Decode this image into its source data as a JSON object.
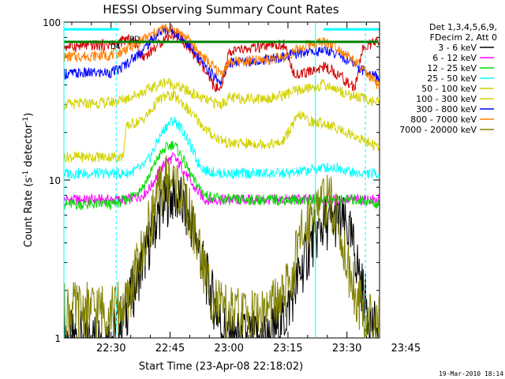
{
  "chart_data": {
    "type": "line",
    "title": "HESSI Observing Summary Count Rates",
    "xlabel": "Start Time (23-Apr-08 22:18:02)",
    "ylabel": "Count Rate (s",
    "ylabel_sup": "-1",
    "ylabel_suffix": " detector",
    "ylabel_end": ")",
    "y_scale": "log",
    "ylim": [
      1,
      100
    ],
    "y_ticks": [
      {
        "value": 1,
        "label": "1"
      },
      {
        "value": 10,
        "label": "10"
      },
      {
        "value": 100,
        "label": "100"
      }
    ],
    "x_range_min": [
      0,
      80.3
    ],
    "x_ticks": [
      {
        "value": 12,
        "label": "22:30"
      },
      {
        "value": 27,
        "label": "22:45"
      },
      {
        "value": 42,
        "label": "23:00"
      },
      {
        "value": 57,
        "label": "23:15"
      },
      {
        "value": 72,
        "label": "23:30"
      },
      {
        "value": 87,
        "label": "23:45"
      }
    ],
    "legend_header": [
      "Det 1,3,4,5,6,9,",
      "FDecim 2, Att 0"
    ],
    "legend_position": "top-right outside",
    "annotations": [
      "RD",
      "D4"
    ],
    "series": [
      {
        "name": "3 - 6 keV",
        "color": "#000000",
        "x": [
          0,
          12,
          16,
          20,
          24,
          26,
          28,
          30,
          33,
          36,
          40,
          43,
          46,
          48,
          52,
          56,
          60,
          63,
          66,
          70,
          72,
          74,
          76,
          78,
          80
        ],
        "y": [
          1,
          1,
          1.5,
          3,
          6,
          7.5,
          8,
          7,
          5,
          2.5,
          1.2,
          1,
          1,
          1,
          1,
          1.3,
          2.5,
          4,
          5.3,
          5.6,
          5,
          3.5,
          2,
          1.3,
          1
        ]
      },
      {
        "name": "6 - 12 keV",
        "color": "#ff00ff",
        "x": [
          0,
          12,
          16,
          20,
          22,
          24,
          26,
          28,
          30,
          33,
          36,
          40,
          44,
          48,
          52,
          56,
          60,
          64,
          68,
          72,
          76,
          80
        ],
        "y": [
          7.5,
          7.5,
          7.5,
          8,
          9,
          11,
          13,
          14,
          12,
          9,
          7.5,
          7.5,
          7.5,
          7.5,
          7.5,
          7.5,
          7.5,
          7.5,
          7.5,
          7.5,
          7.5,
          7.5
        ]
      },
      {
        "name": "12 - 25 keV",
        "color": "#00dd00",
        "x": [
          0,
          12,
          16,
          20,
          22,
          24,
          26,
          28,
          30,
          33,
          36,
          40,
          44,
          48,
          52,
          56,
          60,
          64,
          68,
          72,
          76,
          80
        ],
        "y": [
          7,
          7,
          7.5,
          9,
          11,
          14,
          16,
          17,
          14,
          10,
          8,
          7.5,
          7.5,
          7.5,
          7.5,
          7.5,
          7.5,
          7.5,
          7.5,
          7.5,
          7.5,
          7
        ]
      },
      {
        "name": "25 - 50 keV",
        "color": "#00ffff",
        "x": [
          0,
          12,
          16,
          20,
          22,
          24,
          26,
          28,
          30,
          32,
          34,
          36,
          40,
          44,
          48,
          52,
          56,
          58,
          62,
          66,
          70,
          72,
          74,
          76,
          80
        ],
        "y": [
          11,
          11,
          11,
          12,
          14,
          18,
          22,
          24,
          21,
          17,
          13,
          11.5,
          11,
          11,
          11,
          11,
          11,
          11,
          11.5,
          12,
          12,
          11.5,
          11,
          11,
          11
        ]
      },
      {
        "name": "50 - 100 keV",
        "color": "#d2d200",
        "x": [
          0,
          12,
          15,
          16,
          20,
          22,
          24,
          26,
          28,
          30,
          32,
          34,
          36,
          38,
          40,
          42,
          44,
          48,
          52,
          55,
          56,
          58,
          60,
          62,
          64,
          66,
          68,
          70,
          72,
          74,
          76,
          78,
          80
        ],
        "y": [
          14,
          14,
          14,
          22,
          24,
          27,
          32,
          34,
          34,
          31,
          27,
          24,
          21,
          19,
          18,
          17,
          17,
          17,
          17,
          17,
          18,
          22,
          26,
          24,
          23,
          23,
          22,
          21,
          20,
          19,
          18,
          17,
          16
        ]
      },
      {
        "name": "100 - 300 keV",
        "color": "#d2d200",
        "x": [
          0,
          12,
          14,
          16,
          20,
          24,
          26,
          28,
          30,
          33,
          36,
          38,
          40,
          42,
          44,
          48,
          52,
          55,
          58,
          62,
          66,
          68,
          70,
          72,
          74,
          76,
          78,
          80
        ],
        "y": [
          30,
          31,
          32,
          33,
          36,
          40,
          42,
          40,
          38,
          35,
          32,
          31,
          30,
          33,
          33,
          33,
          33,
          34,
          36,
          38,
          40,
          39,
          37,
          35,
          34,
          33,
          32,
          31
        ]
      },
      {
        "name": "300 - 800 keV",
        "color": "#0000ff",
        "x": [
          0,
          12,
          14,
          16,
          18,
          20,
          22,
          24,
          26,
          28,
          30,
          32,
          34,
          36,
          38,
          40,
          42,
          44,
          48,
          52,
          56,
          58,
          60,
          62,
          64,
          66,
          68,
          70,
          72,
          74,
          76,
          78,
          80
        ],
        "y": [
          47,
          48,
          50,
          55,
          60,
          66,
          75,
          85,
          90,
          88,
          80,
          70,
          60,
          52,
          46,
          42,
          55,
          56,
          57,
          58,
          60,
          62,
          64,
          65,
          65,
          66,
          65,
          62,
          58,
          54,
          50,
          47,
          45
        ]
      },
      {
        "name": "800 - 7000 keV",
        "color": "#ff7f00",
        "x": [
          0,
          12,
          14,
          16,
          18,
          20,
          22,
          24,
          26,
          28,
          30,
          32,
          34,
          36,
          38,
          40,
          42,
          44,
          48,
          52,
          56,
          58,
          60,
          62,
          64,
          66,
          68,
          70,
          72,
          74,
          76,
          78,
          80
        ],
        "y": [
          60,
          62,
          64,
          68,
          72,
          77,
          82,
          88,
          92,
          90,
          84,
          76,
          66,
          58,
          52,
          47,
          55,
          56,
          57,
          58,
          60,
          64,
          68,
          72,
          74,
          75,
          73,
          68,
          62,
          56,
          50,
          44,
          40
        ]
      },
      {
        "name": "7000 - 20000 keV",
        "color": "#808000",
        "x": [
          0,
          12,
          16,
          18,
          20,
          22,
          24,
          26,
          28,
          30,
          32,
          34,
          36,
          38,
          40,
          42,
          44,
          48,
          52,
          56,
          58,
          60,
          62,
          64,
          66,
          68,
          70,
          72,
          74,
          76,
          78,
          80
        ],
        "y": [
          1.5,
          1.5,
          1.6,
          2.5,
          3.5,
          5.5,
          8,
          10,
          10,
          8,
          6,
          4,
          2.5,
          1.8,
          1.5,
          1.4,
          1.4,
          1.4,
          1.5,
          1.8,
          2.5,
          4,
          5.5,
          7,
          7.5,
          7,
          5,
          3,
          2,
          1.5,
          1.3,
          1.2
        ]
      },
      {
        "color": "#d00000",
        "x": [
          0,
          12,
          14,
          16,
          18,
          20,
          22,
          24,
          26,
          28,
          30,
          32,
          34,
          36,
          38,
          40,
          42,
          44,
          48,
          52,
          56,
          58,
          60,
          62,
          64,
          66,
          68,
          70,
          72,
          74,
          76,
          78,
          80
        ],
        "y": [
          70,
          72,
          74,
          78,
          75,
          60,
          65,
          72,
          80,
          84,
          78,
          68,
          58,
          48,
          40,
          36,
          65,
          66,
          68,
          70,
          72,
          50,
          46,
          48,
          50,
          52,
          50,
          46,
          42,
          38,
          68,
          72,
          75
        ]
      }
    ],
    "reference_lines": [
      {
        "color": "#00ffff",
        "value": 90,
        "segments": [
          [
            0,
            14
          ],
          [
            66,
            80
          ]
        ]
      },
      {
        "color": "#008000",
        "value": 75,
        "segments": [
          [
            0,
            80
          ]
        ]
      }
    ],
    "vertical_markers": [
      {
        "color": "#00ffff",
        "x": 0,
        "style": "solid"
      },
      {
        "color": "#00ffff",
        "x": 13.3,
        "style": "dashed"
      },
      {
        "color": "#00ffff",
        "x": 64.0,
        "style": "solid"
      },
      {
        "color": "#00ffff",
        "x": 76.7,
        "style": "dashed"
      }
    ]
  },
  "timestamp": "19-Mar-2010 18:14"
}
